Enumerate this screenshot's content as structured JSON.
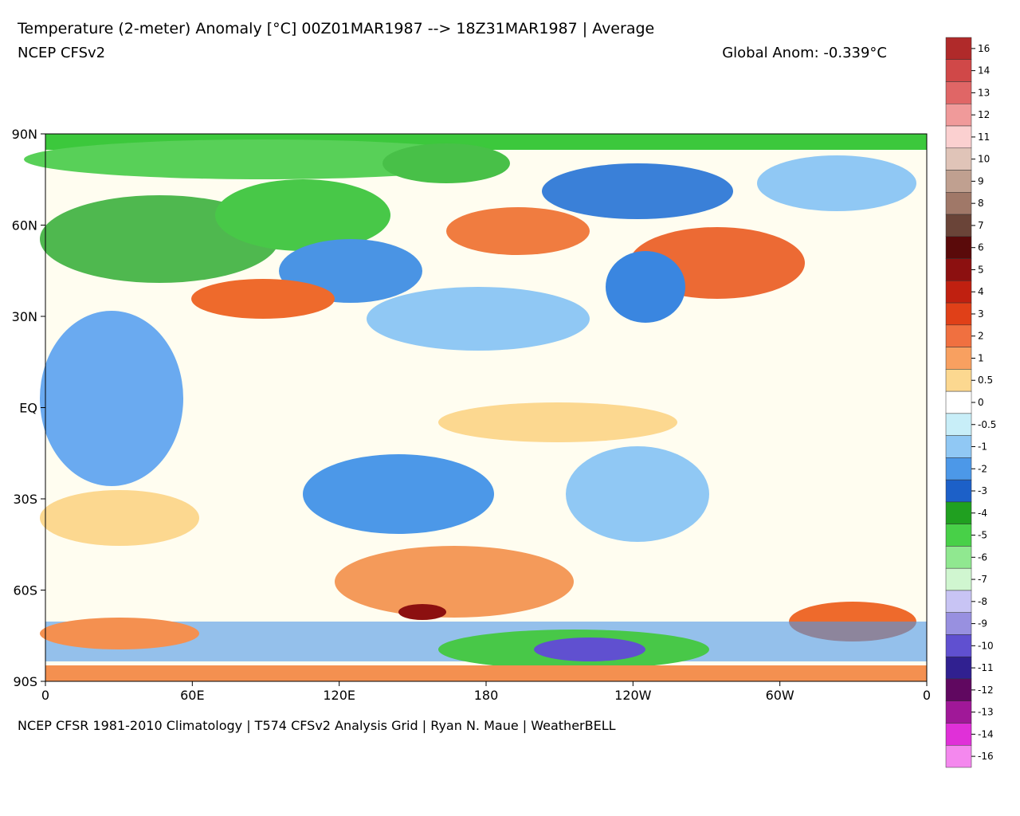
{
  "header": {
    "title": "Temperature (2-meter) Anomaly  [°C] 00Z01MAR1987 --> 18Z31MAR1987 | Average",
    "subtitle": "NCEP CFSv2",
    "global_anom": "Global Anom: -0.339°C"
  },
  "map": {
    "lat_labels": [
      "90N",
      "60N",
      "30N",
      "EQ",
      "30S",
      "60S",
      "90S"
    ],
    "lon_labels": [
      "0",
      "60E",
      "120E",
      "180",
      "120W",
      "60W",
      "0"
    ]
  },
  "footer": "NCEP CFSR 1981-2010 Climatology | T574 CFSv2 Analysis Grid | Ryan N. Maue | WeatherBELL",
  "colorbar": {
    "labels": [
      "16",
      "14",
      "13",
      "12",
      "11",
      "10",
      "9",
      "8",
      "7",
      "6",
      "5",
      "4",
      "3",
      "2",
      "1",
      "0.5",
      "0",
      "-0.5",
      "-1",
      "-2",
      "-3",
      "-4",
      "-5",
      "-6",
      "-7",
      "-8",
      "-9",
      "-10",
      "-11",
      "-12",
      "-13",
      "-14",
      "-16"
    ],
    "colors": [
      "#b02a2a",
      "#d04848",
      "#e06666",
      "#f09a9a",
      "#fbd0d0",
      "#e0c4b8",
      "#c0a090",
      "#a07868",
      "#6a4438",
      "#5a0a0a",
      "#8c1010",
      "#c02010",
      "#e04018",
      "#f07040",
      "#f8a060",
      "#fcd890",
      "#ffffff",
      "#c8eef8",
      "#90c8f4",
      "#4c98e8",
      "#1c60c8",
      "#20a020",
      "#48d048",
      "#90e890",
      "#d0f6d0",
      "#c8c4f4",
      "#9890e0",
      "#6050d0",
      "#302090",
      "#600860",
      "#a01898",
      "#e030d8",
      "#f488ee"
    ]
  }
}
